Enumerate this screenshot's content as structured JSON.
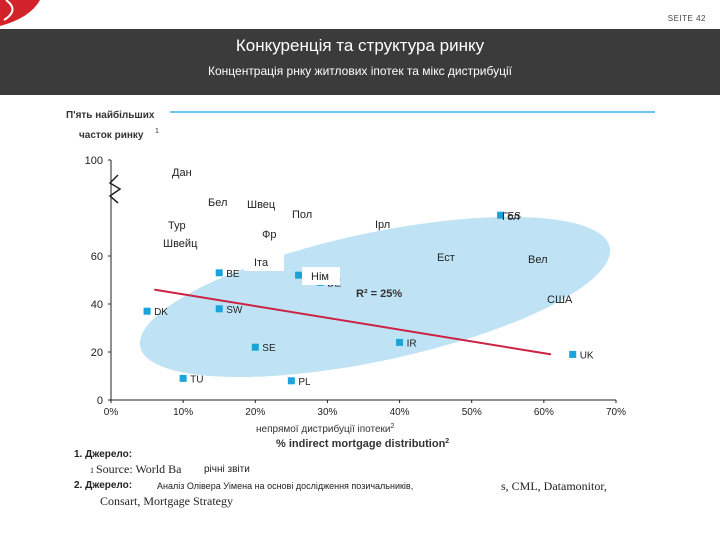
{
  "header": {
    "page_label": "SEITE 42",
    "title": "Конкуренція та структура ринку",
    "subtitle": "Концентрація рнку житлових іпотек та мікс дистрибуції"
  },
  "colors": {
    "header_bg": "#3b3b3b",
    "point": "#1aa3dd",
    "ellipse": "#bfe3f5",
    "trend": "#cc2244",
    "logo": "#d2232a"
  },
  "chart_data": {
    "type": "scatter",
    "ylabel_line1": "П'ять найбільших",
    "ylabel_line2": "часток ринку",
    "ylabel_sup": "1",
    "xlabel_ua": "непрямої дистрибуції іпотеки",
    "xlabel_ua_sup": "2",
    "xlabel_en": "% indirect mortgage distribution",
    "xlabel_en_sup": "2",
    "xlim": [
      0,
      70
    ],
    "ylim": [
      0,
      100
    ],
    "x_ticks": [
      "0%",
      "10%",
      "20%",
      "30%",
      "40%",
      "50%",
      "60%",
      "70%"
    ],
    "y_ticks": [
      "0",
      "20",
      "40",
      "60",
      "100"
    ],
    "points": [
      {
        "label": "ES",
        "x": 54,
        "y": 77
      },
      {
        "label": "DK",
        "x": 5,
        "y": 37
      },
      {
        "label": "BE",
        "x": 15,
        "y": 53
      },
      {
        "label": "SW",
        "x": 15,
        "y": 38
      },
      {
        "label": "IT",
        "x": 26,
        "y": 52
      },
      {
        "label": "DE",
        "x": 29,
        "y": 49
      },
      {
        "label": "SE",
        "x": 20,
        "y": 22
      },
      {
        "label": "IR",
        "x": 40,
        "y": 24
      },
      {
        "label": "UK",
        "x": 64,
        "y": 19
      },
      {
        "label": "TU",
        "x": 10,
        "y": 9
      },
      {
        "label": "PL",
        "x": 25,
        "y": 8
      }
    ],
    "trendline": {
      "x": [
        6,
        61
      ],
      "y": [
        46,
        19
      ]
    },
    "r2_label": "R² = 25%",
    "overlay_labels": [
      "Дан",
      "Бел",
      "Швец",
      "Пол",
      "Ірл",
      "Гол",
      "Тур",
      "Швейц",
      "Фр",
      "Ест",
      "Вел",
      "Іта",
      "Нім",
      "США"
    ]
  },
  "sources": {
    "label1": "1. Джерело:",
    "source1_en": "Source: World Ba",
    "source1_ua": "річні звіти",
    "label2": "2. Джерело:",
    "source2_ua": "Аналіз Олівера Уімена на основі дослідження позичальників,",
    "source2_en_tail": "s, CML, Datamonitor,",
    "source2_en_line2": "Consart, Mortgage Strategy"
  }
}
